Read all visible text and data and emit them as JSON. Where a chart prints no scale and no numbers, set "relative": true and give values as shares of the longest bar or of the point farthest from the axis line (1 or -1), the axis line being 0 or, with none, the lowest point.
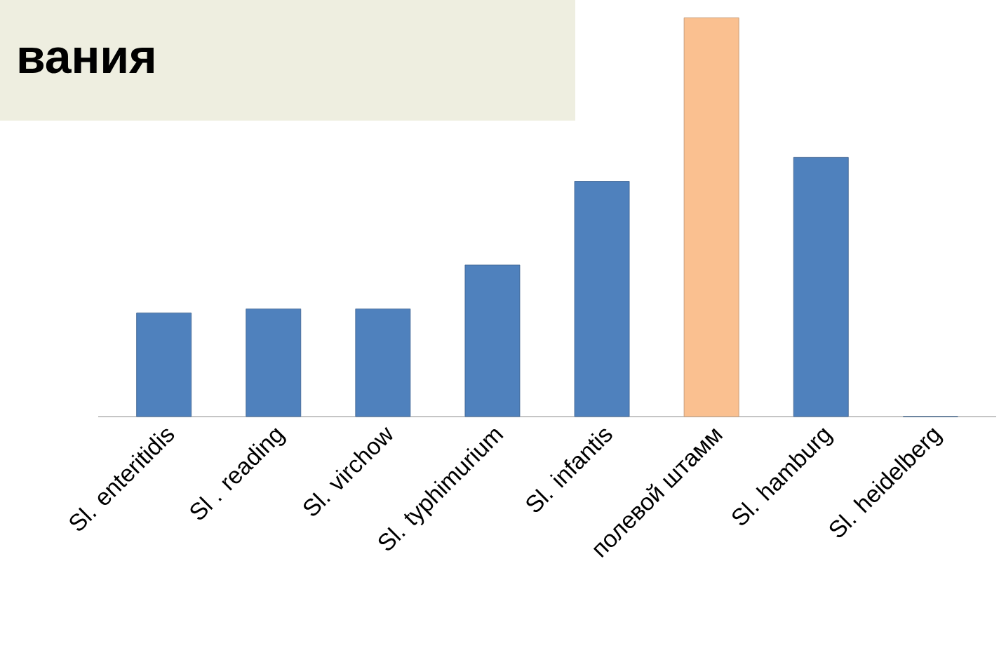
{
  "chart_data": {
    "type": "bar",
    "title": "вания",
    "relative": true,
    "categories": [
      "Sl. enteritidis",
      "Sl . reading",
      "Sl. virchow",
      "Sl. typhimurium",
      "Sl. infantis",
      "полевой штамм",
      "Sl. hamburg",
      "Sl. heidelberg"
    ],
    "values": [
      0.26,
      0.27,
      0.27,
      0.38,
      0.59,
      1,
      0.65,
      0
    ],
    "colors": [
      "#4f81bd",
      "#4f81bd",
      "#4f81bd",
      "#4f81bd",
      "#4f81bd",
      "#fac090",
      "#4f81bd",
      "#4f81bd"
    ]
  }
}
